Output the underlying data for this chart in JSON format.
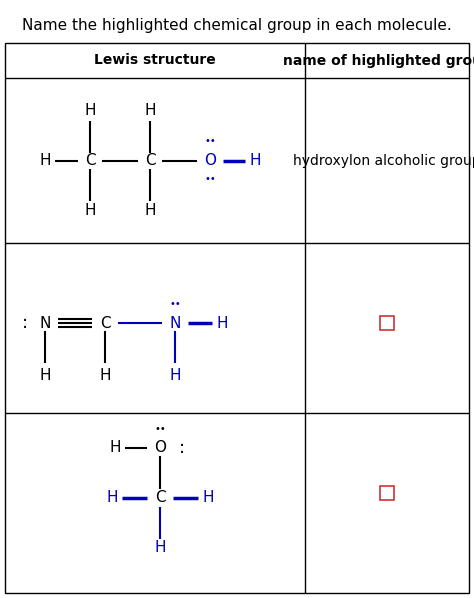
{
  "title": "Name the highlighted chemical group in each molecule.",
  "title_fontsize": 11,
  "col1_header": "Lewis structure",
  "col2_header": "name of highlighted group",
  "header_fontsize": 10,
  "background_color": "#ffffff",
  "black": "#000000",
  "blue": "#0000bb",
  "red": "#cc3333",
  "answer1": "hydroxylon alcoholic group",
  "answer_fontsize": 10
}
